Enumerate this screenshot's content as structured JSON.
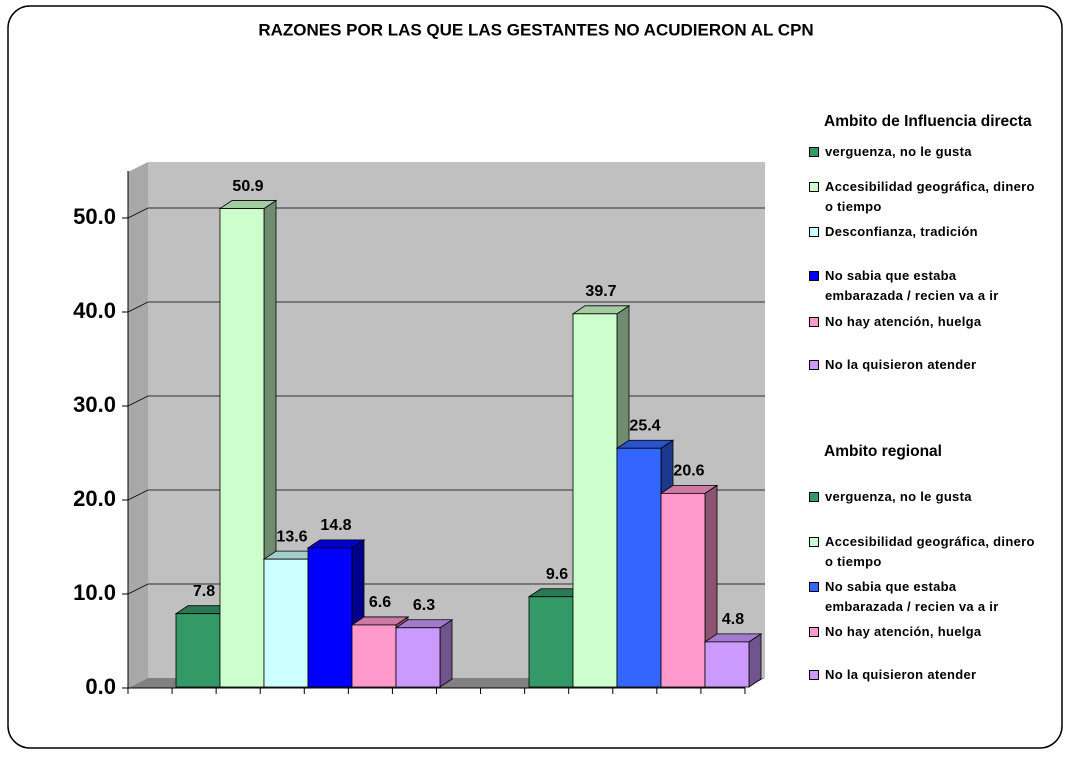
{
  "chart_data": {
    "type": "bar",
    "title": "RAZONES POR LAS QUE LAS GESTANTES NO ACUDIERON AL CPN",
    "ylim": [
      0,
      55
    ],
    "yticks": [
      {
        "value": 0,
        "label": "0.0"
      },
      {
        "value": 10,
        "label": "10.0"
      },
      {
        "value": 20,
        "label": "20.0"
      },
      {
        "value": 30,
        "label": "30.0"
      },
      {
        "value": 40,
        "label": "40.0"
      },
      {
        "value": 50,
        "label": "50.0"
      }
    ],
    "grid": true,
    "legend": "right",
    "groups": [
      {
        "name": "Ambito  de Influencia directa",
        "series": [
          {
            "name": "verguenza, no le gusta",
            "color": "#339966",
            "value": 7.8
          },
          {
            "name": "Accesibilidad geográfica, dinero o tiempo",
            "color": "#ccffcc",
            "value": 50.9
          },
          {
            "name": "Desconfianza, tradición",
            "color": "#ccffff",
            "value": 13.6
          },
          {
            "name": "No sabia que estaba embarazada / recien va a ir",
            "color": "#0000ff",
            "value": 14.8
          },
          {
            "name": "No hay atención, huelga",
            "color": "#ff99cc",
            "value": 6.6
          },
          {
            "name": "No la quisieron atender",
            "color": "#cc99ff",
            "value": 6.3
          }
        ]
      },
      {
        "name": "Ambito regional",
        "series": [
          {
            "name": "verguenza, no le gusta",
            "color": "#339966",
            "value": 9.6
          },
          {
            "name": "Accesibilidad geográfica, dinero o tiempo",
            "color": "#ccffcc",
            "value": 39.7
          },
          {
            "name": "No sabia que estaba embarazada / recien va a ir",
            "color": "#3366ff",
            "value": 25.4
          },
          {
            "name": "No hay atención, huelga",
            "color": "#ff99cc",
            "value": 20.6
          },
          {
            "name": "No la quisieron atender",
            "color": "#cc99ff",
            "value": 4.8
          }
        ]
      }
    ]
  }
}
